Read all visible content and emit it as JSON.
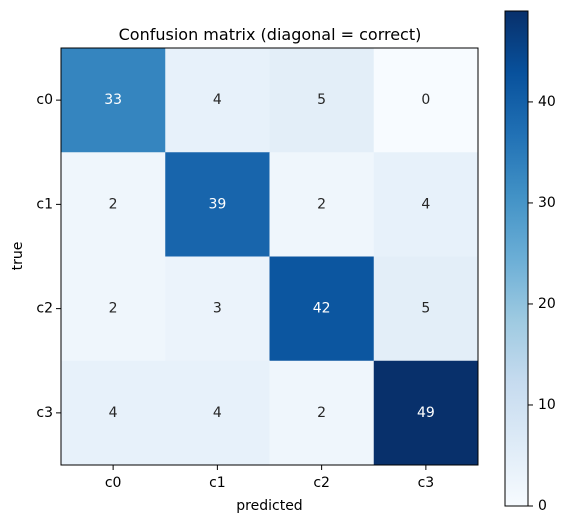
{
  "chart_data": {
    "type": "heatmap",
    "title": "Confusion matrix (diagonal = correct)",
    "xlabel": "predicted",
    "ylabel": "true",
    "x_categories": [
      "c0",
      "c1",
      "c2",
      "c3"
    ],
    "y_categories": [
      "c0",
      "c1",
      "c2",
      "c3"
    ],
    "values": [
      [
        33,
        4,
        5,
        0
      ],
      [
        2,
        39,
        2,
        4
      ],
      [
        2,
        3,
        42,
        5
      ],
      [
        4,
        4,
        2,
        49
      ]
    ],
    "colormap": "Blues",
    "vmin": 0,
    "vmax": 49,
    "colorbar_ticks": [
      0,
      10,
      20,
      30,
      40
    ],
    "colorbar_tick_labels": [
      "0",
      "10",
      "20",
      "30",
      "40"
    ]
  }
}
